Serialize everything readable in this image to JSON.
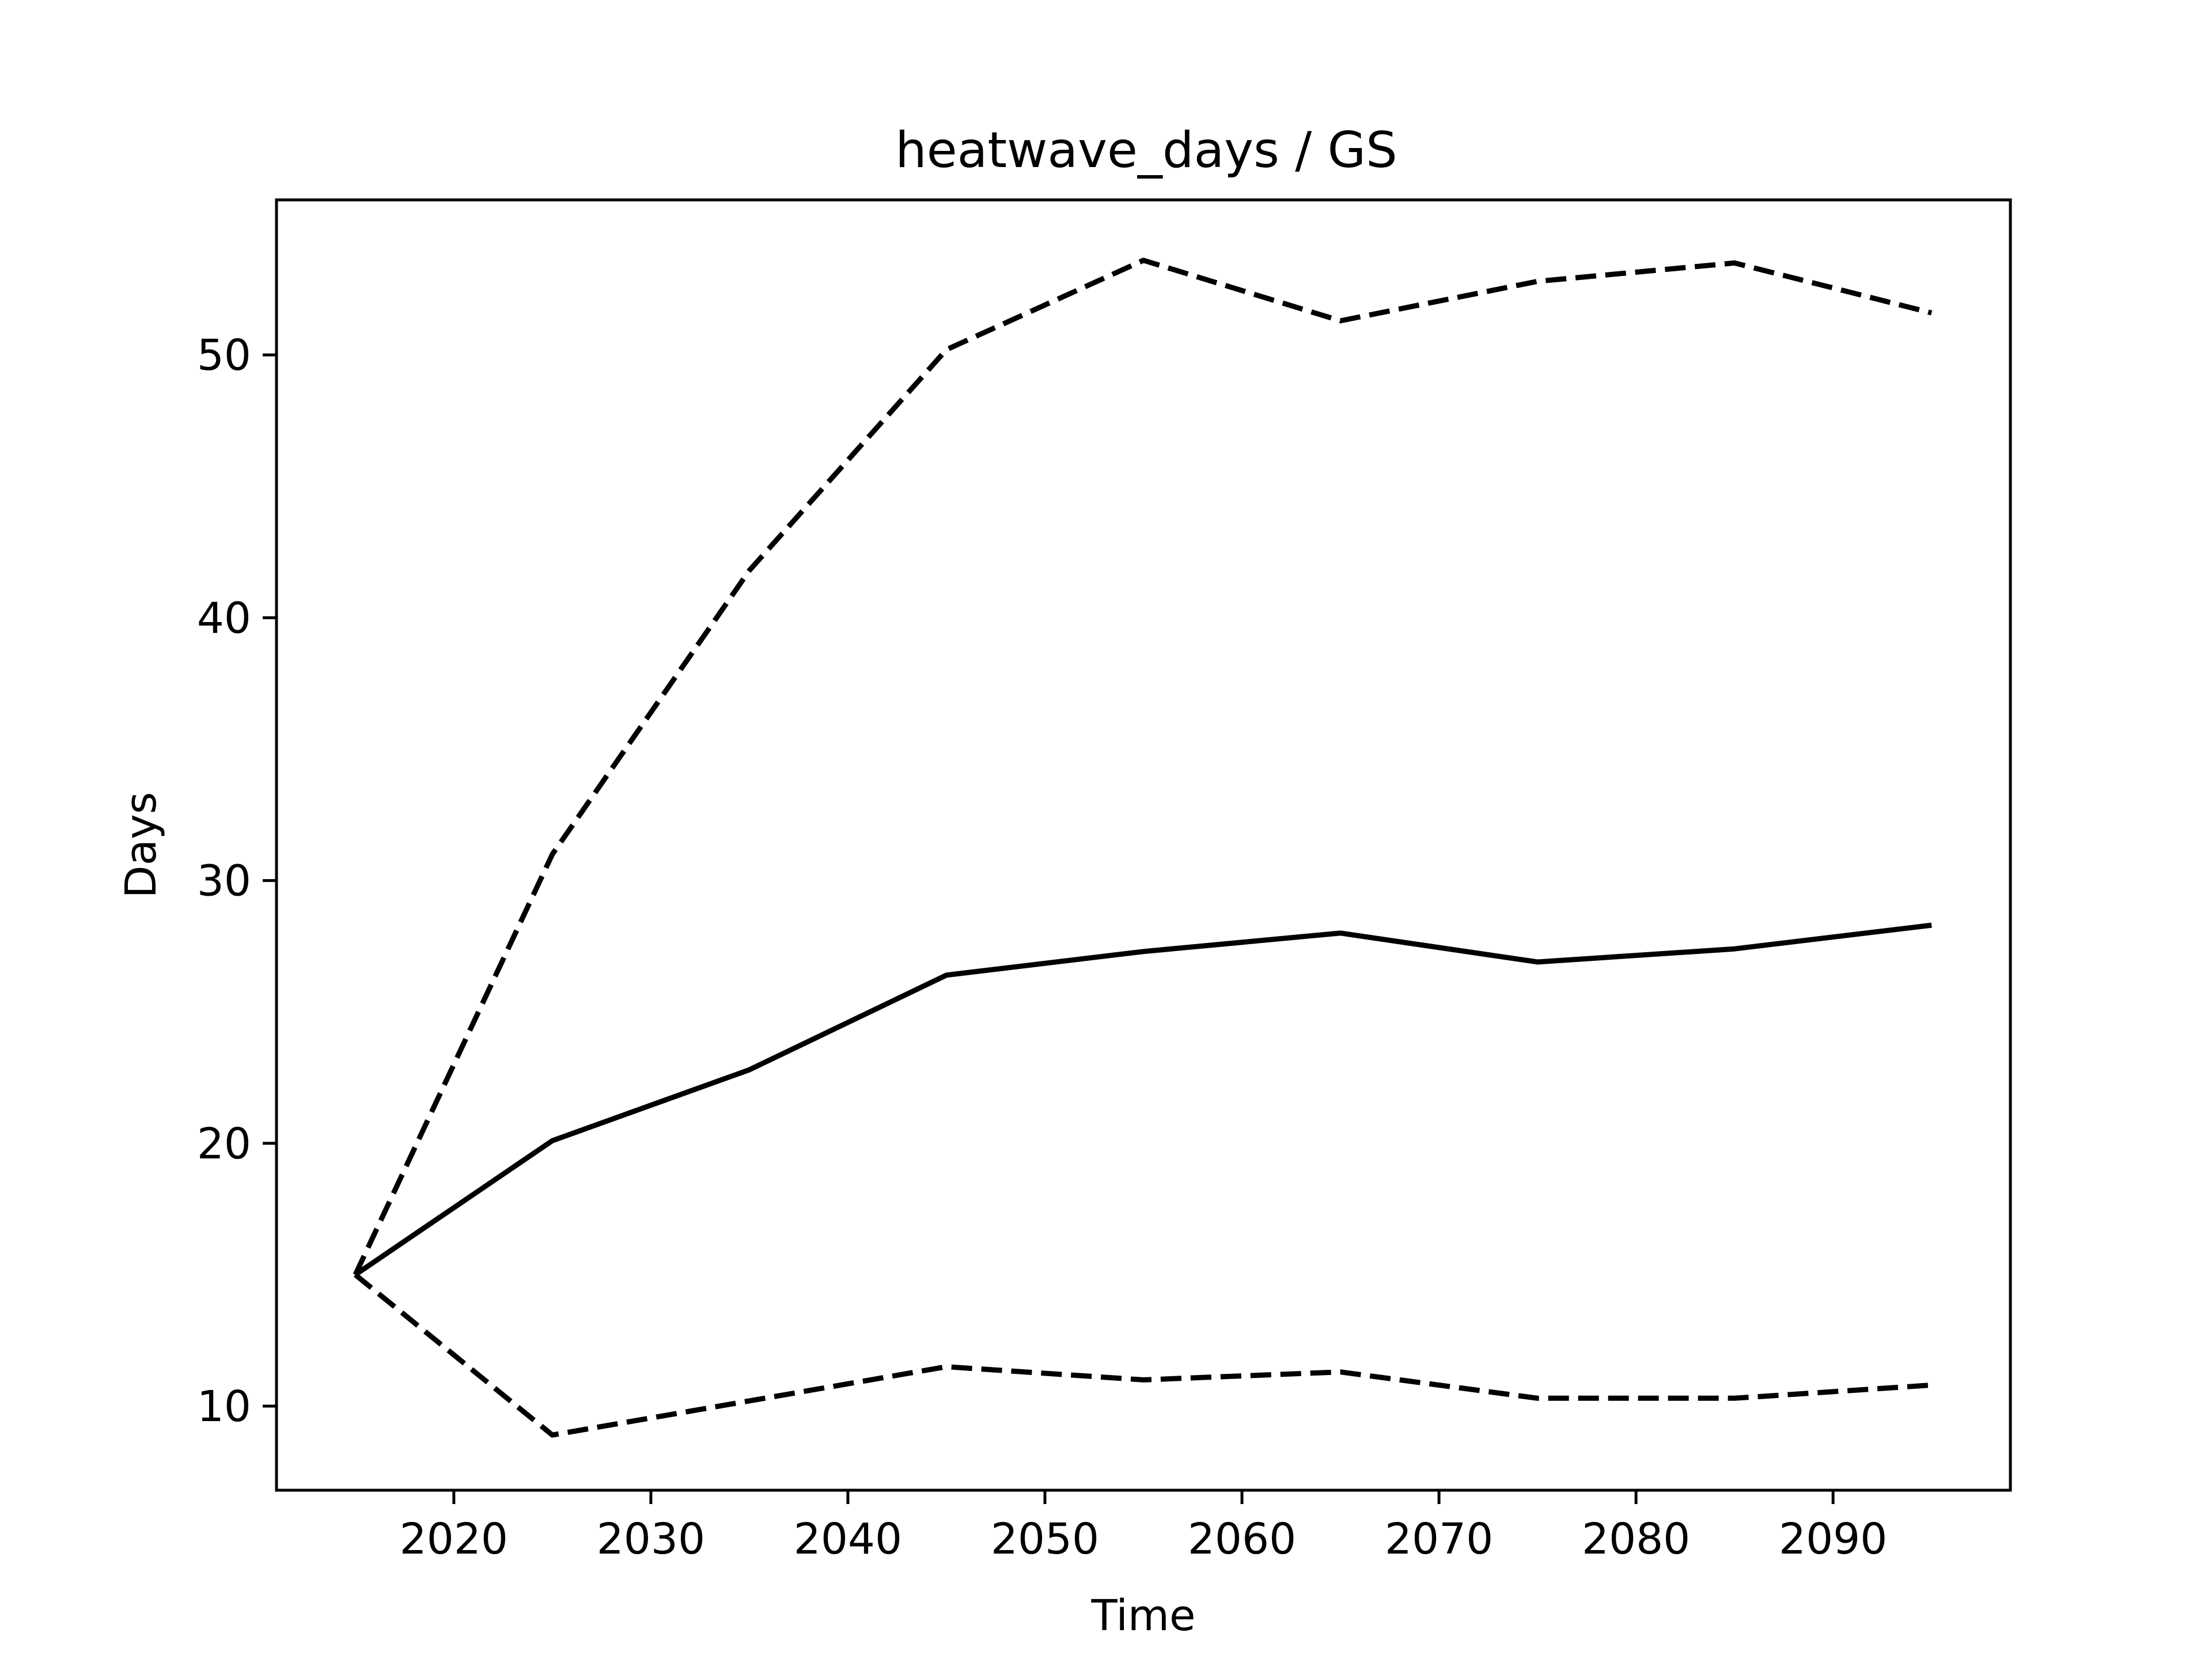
{
  "chart_data": {
    "type": "line",
    "title": "heatwave_days / GS",
    "xlabel": "Time",
    "ylabel": "Days",
    "xlim": [
      2011,
      2099
    ],
    "ylim": [
      6.8,
      55.9
    ],
    "xticks": [
      2020,
      2030,
      2040,
      2050,
      2060,
      2070,
      2080,
      2090
    ],
    "yticks": [
      10,
      20,
      30,
      40,
      50
    ],
    "grid": false,
    "x": [
      2015,
      2025,
      2035,
      2045,
      2055,
      2065,
      2075,
      2085,
      2095
    ],
    "series": [
      {
        "style": "dashed",
        "color": "#000000",
        "values": [
          15.0,
          31.0,
          41.8,
          50.2,
          53.6,
          51.3,
          52.8,
          53.5,
          51.6
        ]
      },
      {
        "style": "solid",
        "color": "#000000",
        "values": [
          15.0,
          20.1,
          22.8,
          26.4,
          27.3,
          28.0,
          26.9,
          27.4,
          28.3
        ]
      },
      {
        "style": "dashed",
        "color": "#000000",
        "values": [
          15.0,
          8.9,
          10.2,
          11.5,
          11.0,
          11.3,
          10.3,
          10.3,
          10.8
        ]
      }
    ]
  }
}
